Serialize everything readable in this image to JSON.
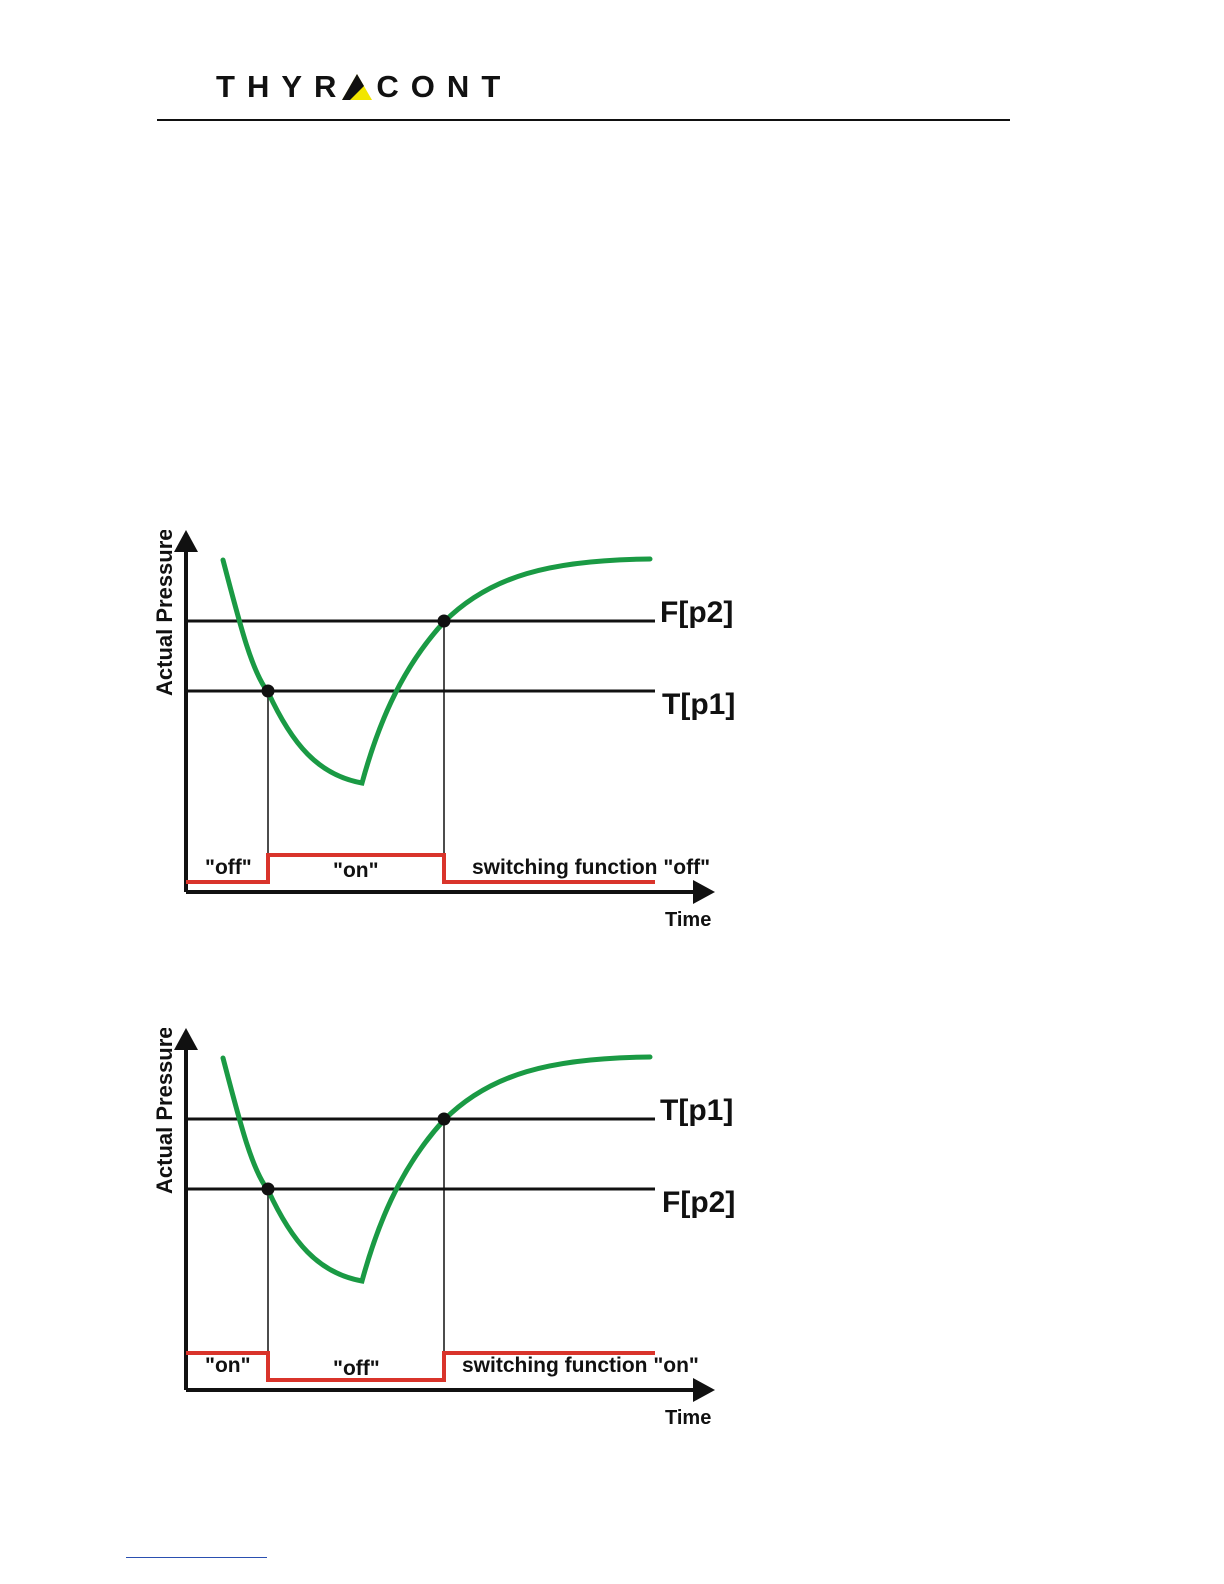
{
  "header": {
    "logo_text": "THYRACONT",
    "logo_letters": [
      "T",
      "H",
      "Y",
      "R",
      "A",
      "C",
      "O",
      "N",
      "T"
    ],
    "logo_accent_color": "#f2e600"
  },
  "colors": {
    "pressure_curve": "#1a9a44",
    "switching_signal": "#d9342b",
    "axes": "#111111"
  },
  "diagrams": [
    {
      "y_axis_label": "Actual Pressure",
      "x_axis_label": "Time",
      "upper_threshold_label": "F[p2]",
      "lower_threshold_label": "T[p1]",
      "state_before": "\"off\"",
      "state_between": "\"on\"",
      "state_after": "switching function \"off\""
    },
    {
      "y_axis_label": "Actual Pressure",
      "x_axis_label": "Time",
      "upper_threshold_label": "T[p1]",
      "lower_threshold_label": "F[p2]",
      "state_before": "\"on\"",
      "state_between": "\"off\"",
      "state_after": "switching function \"on\""
    }
  ]
}
